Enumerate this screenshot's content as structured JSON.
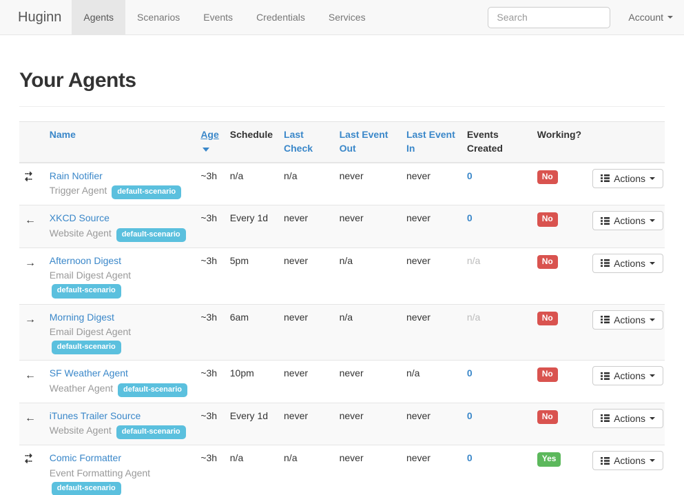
{
  "colors": {
    "accent": "#3a87c9",
    "badge-info": "#5bc0de",
    "badge-danger": "#d9534f",
    "badge-success": "#5cb85c",
    "navbar-bg": "#f8f8f8",
    "active-tab-bg": "#e7e7e7"
  },
  "navbar": {
    "brand": "Huginn",
    "tabs": [
      {
        "label": "Agents",
        "active": true
      },
      {
        "label": "Scenarios",
        "active": false
      },
      {
        "label": "Events",
        "active": false
      },
      {
        "label": "Credentials",
        "active": false
      },
      {
        "label": "Services",
        "active": false
      }
    ],
    "search_placeholder": "Search",
    "account_label": "Account"
  },
  "page": {
    "title": "Your Agents"
  },
  "table": {
    "headers": [
      {
        "label": "Name",
        "link": true,
        "sorted": false
      },
      {
        "label": "Age",
        "link": true,
        "sorted": true
      },
      {
        "label": "Schedule",
        "link": false,
        "sorted": false
      },
      {
        "label": "Last Check",
        "link": true,
        "sorted": false
      },
      {
        "label": "Last Event Out",
        "link": true,
        "sorted": false
      },
      {
        "label": "Last Event In",
        "link": true,
        "sorted": false
      },
      {
        "label": "Events Created",
        "link": false,
        "sorted": false
      },
      {
        "label": "Working?",
        "link": false,
        "sorted": false
      }
    ],
    "actions_label": "Actions",
    "rows": [
      {
        "icon": "in-out",
        "name": "Rain Notifier",
        "type": "Trigger Agent",
        "badge": "default-scenario",
        "age": "~3h",
        "schedule": "n/a",
        "last_check": "n/a",
        "last_event_out": "never",
        "last_event_in": "never",
        "events_created": "0",
        "working": "No"
      },
      {
        "icon": "left",
        "name": "XKCD Source",
        "type": "Website Agent",
        "badge": "default-scenario",
        "age": "~3h",
        "schedule": "Every 1d",
        "last_check": "never",
        "last_event_out": "never",
        "last_event_in": "never",
        "events_created": "0",
        "working": "No"
      },
      {
        "icon": "right",
        "name": "Afternoon Digest",
        "type": "Email Digest Agent",
        "badge": "default-scenario",
        "age": "~3h",
        "schedule": "5pm",
        "last_check": "never",
        "last_event_out": "n/a",
        "last_event_in": "never",
        "events_created": "n/a",
        "working": "No"
      },
      {
        "icon": "right",
        "name": "Morning Digest",
        "type": "Email Digest Agent",
        "badge": "default-scenario",
        "age": "~3h",
        "schedule": "6am",
        "last_check": "never",
        "last_event_out": "n/a",
        "last_event_in": "never",
        "events_created": "n/a",
        "working": "No"
      },
      {
        "icon": "left",
        "name": "SF Weather Agent",
        "type": "Weather Agent",
        "badge": "default-scenario",
        "age": "~3h",
        "schedule": "10pm",
        "last_check": "never",
        "last_event_out": "never",
        "last_event_in": "n/a",
        "events_created": "0",
        "working": "No"
      },
      {
        "icon": "left",
        "name": "iTunes Trailer Source",
        "type": "Website Agent",
        "badge": "default-scenario",
        "age": "~3h",
        "schedule": "Every 1d",
        "last_check": "never",
        "last_event_out": "never",
        "last_event_in": "never",
        "events_created": "0",
        "working": "No"
      },
      {
        "icon": "in-out",
        "name": "Comic Formatter",
        "type": "Event Formatting Agent",
        "badge": "default-scenario",
        "age": "~3h",
        "schedule": "n/a",
        "last_check": "n/a",
        "last_event_out": "never",
        "last_event_in": "never",
        "events_created": "0",
        "working": "Yes"
      }
    ]
  }
}
